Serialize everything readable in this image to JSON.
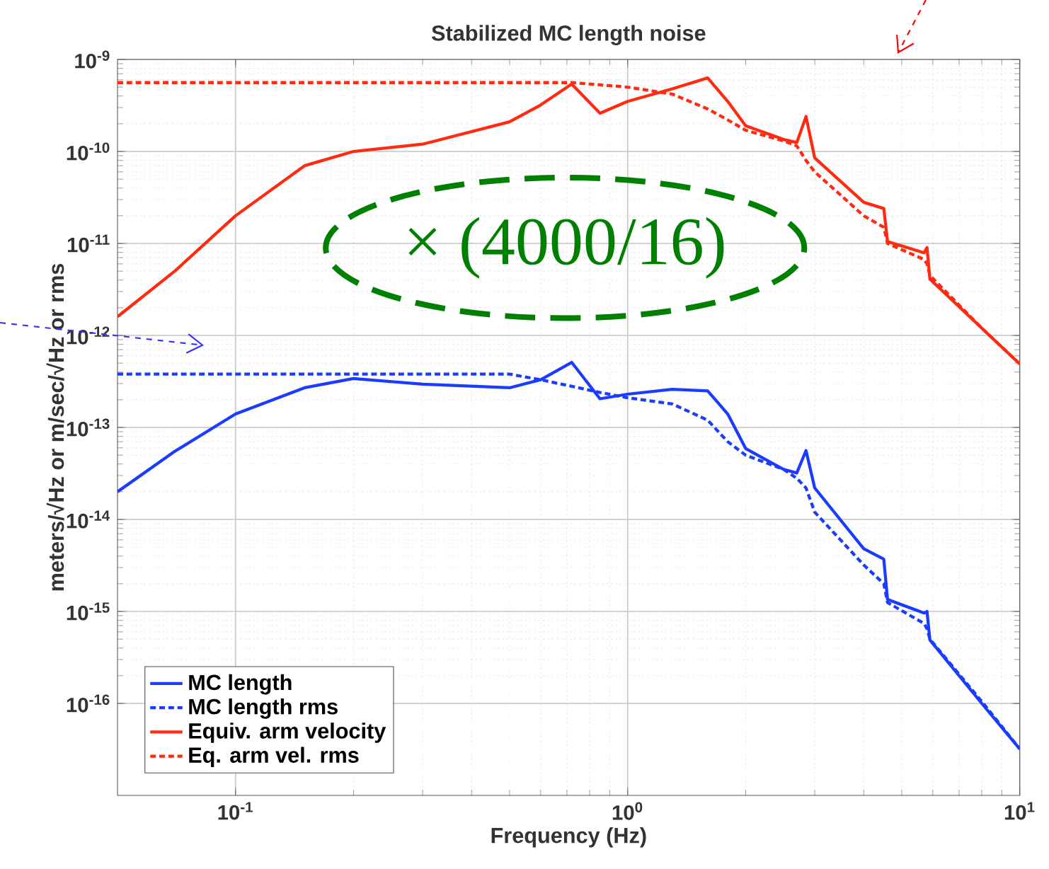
{
  "chart_data": {
    "type": "line",
    "title": "Stabilized MC length noise",
    "xlabel": "Frequency (Hz)",
    "ylabel": "meters/√Hz or m/sec/√Hz or rms",
    "x": [
      0.05,
      0.07,
      0.1,
      0.15,
      0.2,
      0.3,
      0.5,
      0.6,
      0.72,
      0.85,
      1.0,
      1.3,
      1.6,
      1.8,
      2.0,
      2.5,
      2.7,
      2.85,
      3.0,
      4.0,
      4.5,
      4.6,
      5.7,
      5.8,
      5.9,
      8,
      10
    ],
    "series": [
      {
        "name": "MC length",
        "color": "#1a3cff",
        "line_style": "solid",
        "values": [
          2e-14,
          5.5e-14,
          1.4e-13,
          2.7e-13,
          3.4e-13,
          2.95e-13,
          2.7e-13,
          3.3e-13,
          5.1e-13,
          2.05e-13,
          2.3e-13,
          2.6e-13,
          2.5e-13,
          1.4e-13,
          5.9e-14,
          3.5e-14,
          3.2e-14,
          5.6e-14,
          2.2e-14,
          4.8e-15,
          3.7e-15,
          1.35e-15,
          9.6e-16,
          1e-15,
          4.9e-16,
          1e-16,
          3.2e-17
        ]
      },
      {
        "name": "MC length rms",
        "color": "#1a3cff",
        "line_style": "dashed",
        "values": [
          3.8e-13,
          3.8e-13,
          3.8e-13,
          3.8e-13,
          3.8e-13,
          3.8e-13,
          3.8e-13,
          3.3e-13,
          2.8e-13,
          2.4e-13,
          2.1e-13,
          1.8e-13,
          1.2e-13,
          7e-14,
          5e-14,
          3.5e-14,
          2.8e-14,
          2.2e-14,
          1.2e-14,
          3.2e-15,
          2e-15,
          1.25e-15,
          7.4e-16,
          6.5e-16,
          5e-16,
          1.05e-16,
          3.2e-17
        ]
      },
      {
        "name": "Equiv. arm velocity",
        "color": "#ff2a10",
        "line_style": "solid",
        "values": [
          1.6e-12,
          5e-12,
          2e-11,
          7e-11,
          1e-10,
          1.2e-10,
          2.1e-10,
          3.2e-10,
          5.4e-10,
          2.6e-10,
          3.5e-10,
          4.8e-10,
          6.3e-10,
          3.5e-10,
          1.9e-10,
          1.35e-10,
          1.25e-10,
          2.4e-10,
          8.5e-11,
          2.8e-11,
          2.4e-11,
          1.05e-11,
          7.9e-12,
          9e-12,
          4.1e-12,
          1.2e-12,
          4.9e-13
        ]
      },
      {
        "name": "Eq. arm vel. rms",
        "color": "#ff2a10",
        "line_style": "dashed",
        "values": [
          5.6e-10,
          5.6e-10,
          5.6e-10,
          5.6e-10,
          5.6e-10,
          5.6e-10,
          5.6e-10,
          5.6e-10,
          5.6e-10,
          5.3e-10,
          5e-10,
          4.2e-10,
          2.9e-10,
          2.2e-10,
          1.7e-10,
          1.3e-10,
          1.15e-10,
          8e-11,
          6e-11,
          2e-11,
          1.5e-11,
          1e-11,
          6.7e-12,
          6e-12,
          4.5e-12,
          1.2e-12,
          4.9e-13
        ]
      }
    ],
    "log": "xy",
    "xlim": [
      0.05,
      10
    ],
    "ylim": [
      1e-17,
      1e-09
    ],
    "xticks": [
      {
        "value": 0.1,
        "label": "10$^{-1}$"
      },
      {
        "value": 1,
        "label": "10$^{0}$"
      },
      {
        "value": 10,
        "label": "10$^{1}$"
      }
    ],
    "yticks": [
      {
        "value": 1e-16,
        "label": "10$^{-16}$"
      },
      {
        "value": 1e-15,
        "label": "10$^{-15}$"
      },
      {
        "value": 1e-14,
        "label": "10$^{-14}$"
      },
      {
        "value": 1e-13,
        "label": "10$^{-13}$"
      },
      {
        "value": 1e-12,
        "label": "10$^{-12}$"
      },
      {
        "value": 1e-11,
        "label": "10$^{-11}$"
      },
      {
        "value": 1e-10,
        "label": "10$^{-10}$"
      },
      {
        "value": 1e-09,
        "label": "10$^{-9}$"
      }
    ],
    "grid": true,
    "legend": "bottom left",
    "marker": "none",
    "annotations": [
      "× (4000/16)"
    ]
  }
}
